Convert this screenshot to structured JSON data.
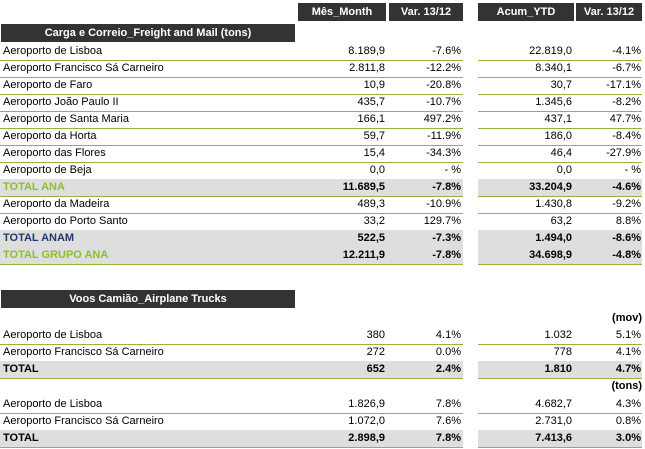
{
  "header": {
    "month": "Mês_Month",
    "var1": "Var. 13/12",
    "ytd": "Acum_YTD",
    "var2": "Var. 13/12"
  },
  "freight": {
    "title": "Carga e Correio_Freight and Mail (tons)",
    "rows": [
      {
        "name": "Aeroporto de Lisboa",
        "month": "8.189,9",
        "var1": "-7.6%",
        "ytd": "22.819,0",
        "var2": "-4.1%"
      },
      {
        "name": "Aeroporto Francisco  Sá Carneiro",
        "month": "2.811,8",
        "var1": "-12.2%",
        "ytd": "8.340,1",
        "var2": "-6.7%"
      },
      {
        "name": "Aeroporto de Faro",
        "month": "10,9",
        "var1": "-20.8%",
        "ytd": "30,7",
        "var2": "-17.1%"
      },
      {
        "name": "Aeroporto João Paulo II",
        "month": "435,7",
        "var1": "-10.7%",
        "ytd": "1.345,6",
        "var2": "-8.2%"
      },
      {
        "name": "Aeroporto de Santa Maria",
        "month": "166,1",
        "var1": "497.2%",
        "ytd": "437,1",
        "var2": "47.7%"
      },
      {
        "name": "Aeroporto da Horta",
        "month": "59,7",
        "var1": "-11.9%",
        "ytd": "186,0",
        "var2": "-8.4%"
      },
      {
        "name": "Aeroporto das Flores",
        "month": "15,4",
        "var1": "-34.3%",
        "ytd": "46,4",
        "var2": "-27.9%"
      },
      {
        "name": "Aeroporto de Beja",
        "month": "0,0",
        "var1": "- %",
        "ytd": "0,0",
        "var2": "- %"
      },
      {
        "name": "TOTAL ANA",
        "month": "11.689,5",
        "var1": "-7.8%",
        "ytd": "33.204,9",
        "var2": "-4.6%"
      },
      {
        "name": "Aeroporto da Madeira",
        "month": "489,3",
        "var1": "-10.9%",
        "ytd": "1.430,8",
        "var2": "-9.2%"
      },
      {
        "name": "Aeroporto do Porto Santo",
        "month": "33,2",
        "var1": "129.7%",
        "ytd": "63,2",
        "var2": "8.8%"
      },
      {
        "name": "TOTAL ANAM",
        "month": "522,5",
        "var1": "-7.3%",
        "ytd": "1.494,0",
        "var2": "-8.6%"
      },
      {
        "name": "TOTAL GRUPO ANA",
        "month": "12.211,9",
        "var1": "-7.8%",
        "ytd": "34.698,9",
        "var2": "-4.8%"
      }
    ]
  },
  "trucks": {
    "title": "Voos Camião_Airplane Trucks",
    "unit1": "(mov)",
    "unit2": "(tons)",
    "mov": [
      {
        "name": "Aeroporto de Lisboa",
        "month": "380",
        "var1": "4.1%",
        "ytd": "1.032",
        "var2": "5.1%"
      },
      {
        "name": "Aeroporto Francisco  Sá Carneiro",
        "month": "272",
        "var1": "0.0%",
        "ytd": "778",
        "var2": "4.1%"
      },
      {
        "name": "TOTAL",
        "month": "652",
        "var1": "2.4%",
        "ytd": "1.810",
        "var2": "4.7%"
      }
    ],
    "tons": [
      {
        "name": "Aeroporto de Lisboa",
        "month": "1.826,9",
        "var1": "7.8%",
        "ytd": "4.682,7",
        "var2": "4.3%"
      },
      {
        "name": "Aeroporto Francisco  Sá Carneiro",
        "month": "1.072,0",
        "var1": "7.6%",
        "ytd": "2.731,0",
        "var2": "0.8%"
      },
      {
        "name": "TOTAL",
        "month": "2.898,9",
        "var1": "7.8%",
        "ytd": "7.413,6",
        "var2": "3.0%"
      }
    ]
  },
  "colors": {
    "header_bg": "#333333",
    "accent_green": "#8dbf2a",
    "total_navy": "#1e3a6e",
    "total_bg": "#dedede"
  }
}
